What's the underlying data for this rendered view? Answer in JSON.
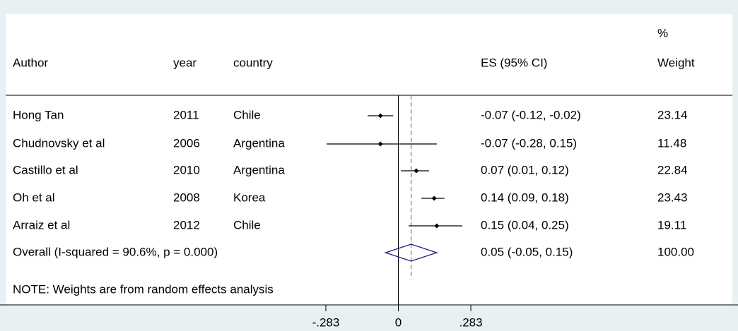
{
  "chart_data": {
    "type": "forest",
    "headers": {
      "author": "Author",
      "year": "year",
      "country": "country",
      "es": "ES (95% CI)",
      "weight_top": "%",
      "weight": "Weight"
    },
    "studies": [
      {
        "author": "Hong Tan",
        "year": "2011",
        "country": "Chile",
        "es": -0.07,
        "ci_low": -0.12,
        "ci_high": -0.02,
        "es_label": "-0.07 (-0.12, -0.02)",
        "weight": "23.14"
      },
      {
        "author": "Chudnovsky et al",
        "year": "2006",
        "country": "Argentina",
        "es": -0.07,
        "ci_low": -0.28,
        "ci_high": 0.15,
        "es_label": "-0.07 (-0.28, 0.15)",
        "weight": "11.48"
      },
      {
        "author": "Castillo et al",
        "year": "2010",
        "country": "Argentina",
        "es": 0.07,
        "ci_low": 0.01,
        "ci_high": 0.12,
        "es_label": "0.07 (0.01, 0.12)",
        "weight": "22.84"
      },
      {
        "author": "Oh et al",
        "year": "2008",
        "country": "Korea",
        "es": 0.14,
        "ci_low": 0.09,
        "ci_high": 0.18,
        "es_label": "0.14 (0.09, 0.18)",
        "weight": "23.43"
      },
      {
        "author": "Arraiz et al",
        "year": "2012",
        "country": "Chile",
        "es": 0.15,
        "ci_low": 0.04,
        "ci_high": 0.25,
        "es_label": "0.15 (0.04, 0.25)",
        "weight": "19.11"
      }
    ],
    "overall": {
      "label": "Overall  (I-squared = 90.6%, p = 0.000)",
      "es": 0.05,
      "ci_low": -0.05,
      "ci_high": 0.15,
      "es_label": "0.05 (-0.05, 0.15)",
      "weight": "100.00"
    },
    "note": "NOTE: Weights are from random effects analysis",
    "xlim": [
      -0.3,
      0.3
    ],
    "xticks": [
      {
        "value": -0.283,
        "label": "-.283"
      },
      0,
      {
        "value": 0.283,
        "label": ".283"
      }
    ],
    "null_line": 0
  }
}
